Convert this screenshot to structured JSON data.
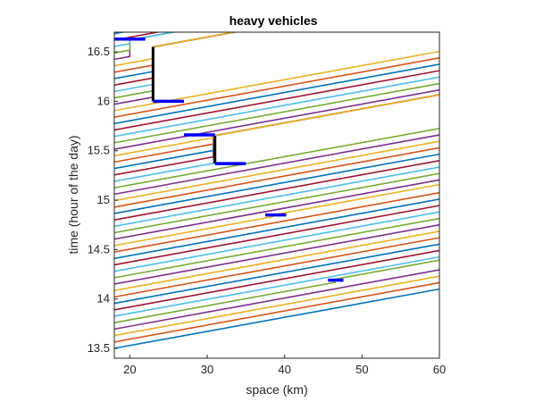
{
  "chart_data": {
    "type": "line",
    "title": "heavy vehicles",
    "xlabel": "space (km)",
    "ylabel": "time (hour of the day)",
    "xlim": [
      18,
      60
    ],
    "ylim": [
      13.4,
      16.7
    ],
    "xticks": [
      20,
      30,
      40,
      50,
      60
    ],
    "yticks": [
      13.5,
      14,
      14.5,
      15,
      15.5,
      16,
      16.5
    ],
    "grid": false,
    "legend": "none",
    "trajectories": {
      "count": 54,
      "first_start_time": 13.5,
      "start_time_step": 0.065,
      "travel_time_h": 0.6,
      "colors": [
        "#0072bd",
        "#d95319",
        "#edb120",
        "#7e2f8e",
        "#77ac30",
        "#4dbeee",
        "#a2142f"
      ]
    },
    "delays": [
      {
        "x": 46.5,
        "t0": 14.16,
        "t1": 14.2
      },
      {
        "x": 38.5,
        "t0": 14.82,
        "t1": 14.85
      },
      {
        "x": 30.8,
        "t0": 15.37,
        "t1": 15.65
      },
      {
        "x": 23.0,
        "t0": 16.0,
        "t1": 16.55
      },
      {
        "x": 20.0,
        "t0": 16.45,
        "t1": 16.62
      }
    ],
    "highlight_color": "#0000ff",
    "queue_color": "#000000",
    "highlights": [
      {
        "t": 16.63,
        "x0": 18.0,
        "x1": 22.0,
        "vertical_at": 23.0,
        "vt0": 16.0,
        "vt1": 16.55
      },
      {
        "t": 16.0,
        "x0": 23.0,
        "x1": 27.0
      },
      {
        "t": 15.66,
        "x0": 27.0,
        "x1": 31.0,
        "vertical_at": 31.0,
        "vt0": 15.37,
        "vt1": 15.65
      },
      {
        "t": 15.37,
        "x0": 31.0,
        "x1": 35.0
      },
      {
        "t": 14.85,
        "x0": 37.5,
        "x1": 40.2
      },
      {
        "t": 14.19,
        "x0": 45.6,
        "x1": 47.6
      }
    ]
  }
}
